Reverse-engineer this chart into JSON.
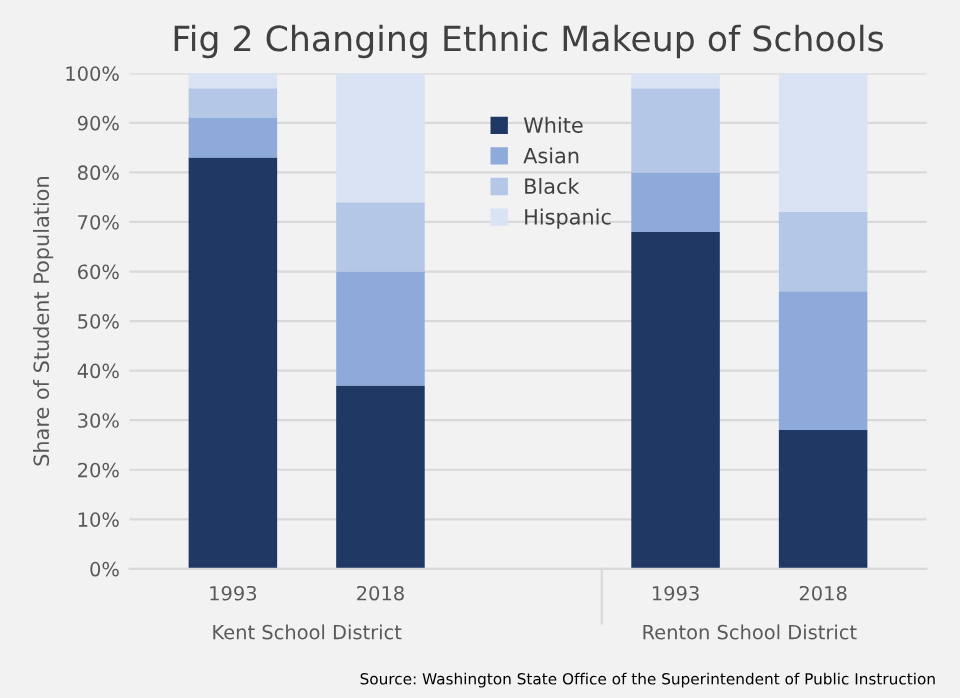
{
  "chart_data": {
    "type": "bar",
    "stacked": true,
    "title": "Fig 2 Changing Ethnic Makeup of Schools",
    "ylabel": "Share of Student Population",
    "categories": [
      "1993",
      "2018",
      null,
      "1993",
      "2018"
    ],
    "series": [
      {
        "name": "White",
        "color": "#1f3864",
        "values": [
          83,
          37,
          null,
          68,
          28
        ]
      },
      {
        "name": "Asian",
        "color": "#8eaadb",
        "values": [
          8,
          23,
          null,
          12,
          28
        ]
      },
      {
        "name": "Black",
        "color": "#b4c7e7",
        "values": [
          6,
          14,
          null,
          17,
          16
        ]
      },
      {
        "name": "Hispanic",
        "color": "#dae3f3",
        "values": [
          3,
          26,
          null,
          3,
          28
        ]
      }
    ],
    "ylim": [
      0,
      100
    ],
    "yticks": [
      {
        "value": 0,
        "label": "0%"
      },
      {
        "value": 10,
        "label": "10%"
      },
      {
        "value": 20,
        "label": "20%"
      },
      {
        "value": 30,
        "label": "30%"
      },
      {
        "value": 40,
        "label": "40%"
      },
      {
        "value": 50,
        "label": "50%"
      },
      {
        "value": 60,
        "label": "60%"
      },
      {
        "value": 70,
        "label": "70%"
      },
      {
        "value": 80,
        "label": "80%"
      },
      {
        "value": 90,
        "label": "90%"
      },
      {
        "value": 100,
        "label": "100%"
      }
    ],
    "grid": "y",
    "legend": "top",
    "annotations": [
      "Kent School District",
      "Renton School District",
      "Source: Washington State Office of the Superintendent of Public Instruction"
    ]
  }
}
